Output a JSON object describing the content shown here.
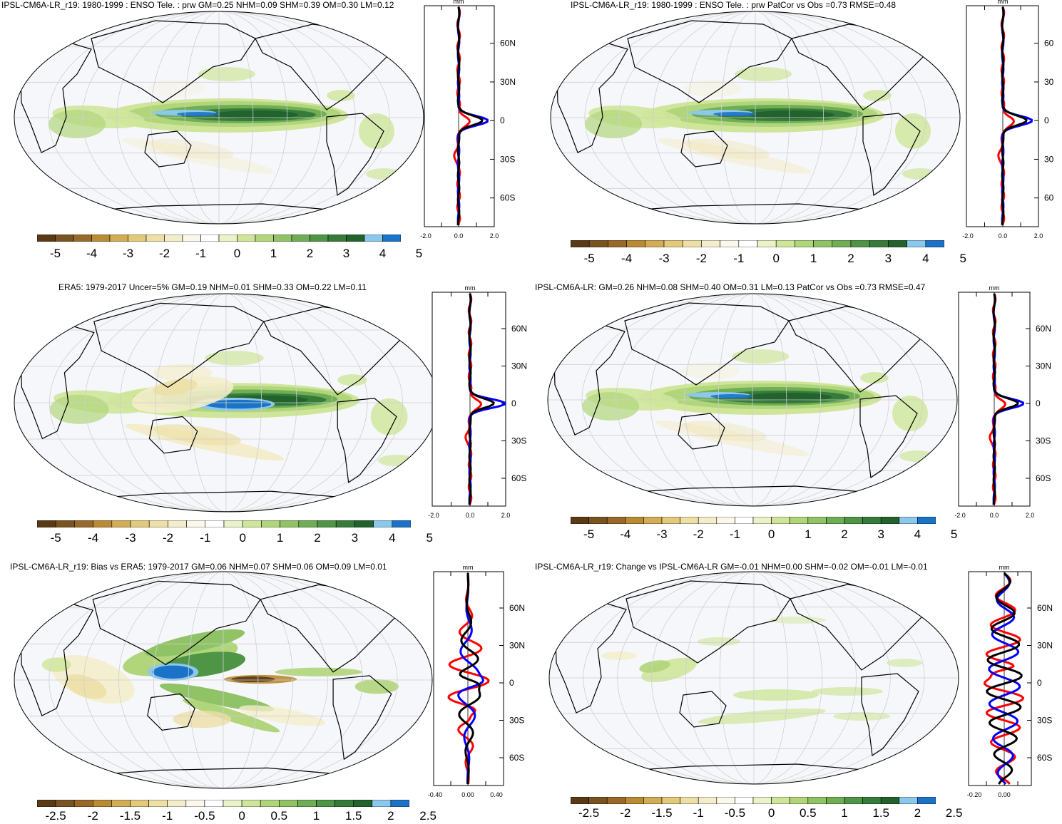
{
  "panels": [
    {
      "id": "p1",
      "title": "IPSL-CM6A-LR_r19: 1980-1999 : ENSO Tele. : prw GM=0.25 NHM=0.09 SHM=0.39 OM=0.30 LM=0.12",
      "profile": {
        "unit": "mm",
        "lat_labels": [
          "60N",
          "30N",
          "0",
          "30S",
          "60S"
        ],
        "x_ticks": [
          "-2.0",
          "0.0",
          "2.0"
        ]
      },
      "colorbar": {
        "labels": [
          "-5",
          "-4",
          "-3",
          "-2",
          "-1",
          "0",
          "1",
          "2",
          "3",
          "4",
          "5"
        ]
      }
    },
    {
      "id": "p2",
      "title": "IPSL-CM6A-LR_r19: 1980-1999 : ENSO Tele. : prw PatCor vs Obs =0.73 RMSE=0.48",
      "profile": {
        "unit": "mm",
        "lat_labels": [
          "60",
          "30",
          "0",
          "30",
          "60"
        ],
        "x_ticks": [
          "-2.0",
          "0.0",
          "2.0"
        ]
      },
      "colorbar": {
        "labels": [
          "-5",
          "-4",
          "-3",
          "-2",
          "-1",
          "0",
          "1",
          "2",
          "3",
          "4",
          "5"
        ]
      }
    },
    {
      "id": "p3",
      "title": "ERA5: 1979-2017 Uncer=5% GM=0.19 NHM=0.01 SHM=0.33 OM=0.22 LM=0.11",
      "profile": {
        "unit": "mm",
        "lat_labels": [
          "60N",
          "30N",
          "0",
          "30S",
          "60S"
        ],
        "x_ticks": [
          "-2.0",
          "0.0",
          "2.0"
        ]
      },
      "colorbar": {
        "labels": [
          "-5",
          "-4",
          "-3",
          "-2",
          "-1",
          "0",
          "1",
          "2",
          "3",
          "4",
          "5"
        ]
      }
    },
    {
      "id": "p4",
      "title": "IPSL-CM6A-LR: GM=0.26 NHM=0.08 SHM=0.40 OM=0.31 LM=0.13 PatCor vs Obs =0.73 RMSE=0.47",
      "profile": {
        "unit": "mm",
        "lat_labels": [
          "60N",
          "30N",
          "0",
          "30S",
          "60S"
        ],
        "x_ticks": [
          "-2.0",
          "0.0",
          "2.0"
        ]
      },
      "colorbar": {
        "labels": [
          "-5",
          "-4",
          "-3",
          "-2",
          "-1",
          "0",
          "1",
          "2",
          "3",
          "4",
          "5"
        ]
      }
    },
    {
      "id": "p5",
      "title": "IPSL-CM6A-LR_r19: Bias vs ERA5: 1979-2017 GM=0.06 NHM=0.07 SHM=0.06 OM=0.09 LM=0.01",
      "profile": {
        "unit": "mm",
        "lat_labels": [
          "60N",
          "30N",
          "0",
          "30S",
          "60S"
        ],
        "x_ticks": [
          "-0.40",
          "0.00",
          "0.40"
        ]
      },
      "colorbar": {
        "labels": [
          "-2.5",
          "-2",
          "-1.5",
          "-1",
          "-0.5",
          "0",
          "0.5",
          "1",
          "1.5",
          "2",
          "2.5"
        ]
      }
    },
    {
      "id": "p6",
      "title": "IPSL-CM6A-LR_r19: Change vs IPSL-CM6A-LR GM=-0.01 NHM=0.00 SHM=-0.02 OM=-0.01 LM=-0.01",
      "profile": {
        "unit": "mm",
        "lat_labels": [
          "60N",
          "30N",
          "0",
          "30S",
          "60S"
        ],
        "x_ticks": [
          "-0.20",
          "0.00"
        ]
      },
      "colorbar": {
        "labels": [
          "-2.5",
          "-2",
          "-1.5",
          "-1",
          "-0.5",
          "0",
          "0.5",
          "1",
          "1.5",
          "2",
          "2.5"
        ]
      }
    }
  ],
  "colors": {
    "colorbar": [
      "#5a3a14",
      "#7a5420",
      "#98692a",
      "#b98b35",
      "#d2ad55",
      "#e2c97c",
      "#eddfa6",
      "#f4edcb",
      "#fbf7ea",
      "#ffffff",
      "#eaf2c8",
      "#cfe69a",
      "#b0d57a",
      "#8fc365",
      "#6fae55",
      "#4f9546",
      "#377b3a",
      "#22622d",
      "#8cc7ec",
      "#1a73c6"
    ],
    "ocean": "#f6f7fb",
    "obs_line": "#ff0000",
    "model_line": "#0000ff",
    "ref_line": "#000000"
  }
}
